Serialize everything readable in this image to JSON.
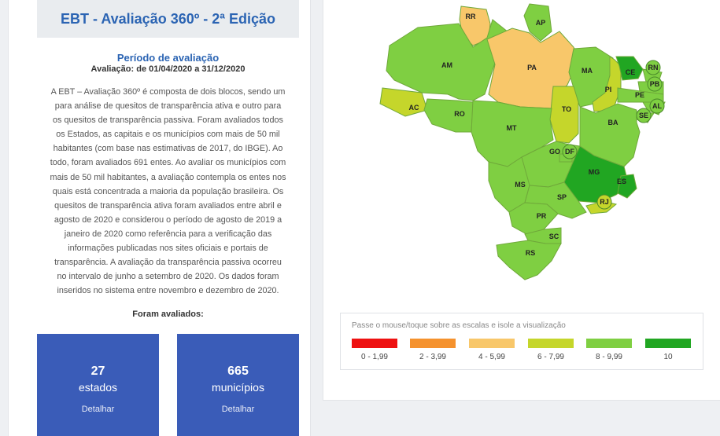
{
  "header": {
    "title": "EBT - Avaliação 360º - 2ª Edição"
  },
  "period": {
    "title": "Período de avaliação",
    "dates": "Avaliação: de 01/04/2020 a 31/12/2020"
  },
  "description": [
    "A EBT – Avaliação 360º é composta de dois blocos, sendo um",
    "para análise de quesitos de transparência ativa e outro para",
    "os quesitos de transparência passiva. Foram avaliados todos",
    "os Estados, as capitais e os municípios com mais de 50 mil",
    "habitantes (com base nas estimativas de 2017, do IBGE). Ao",
    "todo, foram avaliados 691 entes. Ao avaliar os municípios com",
    "mais de 50 mil habitantes, a avaliação contempla os entes nos",
    "quais está concentrada a maioria da população brasileira. Os",
    "quesitos de transparência ativa foram avaliados entre abril e",
    "agosto de 2020 e considerou o período de agosto de 2019 a",
    "janeiro de 2020 como referência para a verificação das",
    "informações publicadas nos sites oficiais e portais de",
    "transparência. A avaliação da transparência passiva ocorreu",
    "no intervalo de junho a setembro de 2020.  Os dados foram",
    "inseridos no sistema entre novembro e dezembro de 2020."
  ],
  "evaluated": {
    "title": "Foram avaliados:",
    "states": {
      "count": "27",
      "label": "estados",
      "link": "Detalhar"
    },
    "municipalities": {
      "count": "665",
      "label": "municípios",
      "link": "Detalhar"
    }
  },
  "map": {
    "states": [
      {
        "uf": "RR",
        "score_band": "4 - 5,99"
      },
      {
        "uf": "AP",
        "score_band": "8 - 9,99"
      },
      {
        "uf": "AM",
        "score_band": "8 - 9,99"
      },
      {
        "uf": "PA",
        "score_band": "4 - 5,99"
      },
      {
        "uf": "MA",
        "score_band": "8 - 9,99"
      },
      {
        "uf": "CE",
        "score_band": "10"
      },
      {
        "uf": "RN",
        "score_band": "8 - 9,99"
      },
      {
        "uf": "PB",
        "score_band": "8 - 9,99"
      },
      {
        "uf": "PI",
        "score_band": "6 - 7,99"
      },
      {
        "uf": "PE",
        "score_band": "8 - 9,99"
      },
      {
        "uf": "AL",
        "score_band": "8 - 9,99"
      },
      {
        "uf": "SE",
        "score_band": "8 - 9,99"
      },
      {
        "uf": "AC",
        "score_band": "6 - 7,99"
      },
      {
        "uf": "RO",
        "score_band": "8 - 9,99"
      },
      {
        "uf": "TO",
        "score_band": "6 - 7,99"
      },
      {
        "uf": "BA",
        "score_band": "8 - 9,99"
      },
      {
        "uf": "MT",
        "score_band": "8 - 9,99"
      },
      {
        "uf": "GO",
        "score_band": "8 - 9,99"
      },
      {
        "uf": "DF",
        "score_band": "8 - 9,99"
      },
      {
        "uf": "MG",
        "score_band": "10"
      },
      {
        "uf": "ES",
        "score_band": "10"
      },
      {
        "uf": "MS",
        "score_band": "8 - 9,99"
      },
      {
        "uf": "SP",
        "score_band": "8 - 9,99"
      },
      {
        "uf": "RJ",
        "score_band": "6 - 7,99"
      },
      {
        "uf": "PR",
        "score_band": "8 - 9,99"
      },
      {
        "uf": "SC",
        "score_band": "8 - 9,99"
      },
      {
        "uf": "RS",
        "score_band": "8 - 9,99"
      }
    ]
  },
  "legend": {
    "hint": "Passe o mouse/toque sobre as escalas e isole a visualização",
    "scales": [
      {
        "range": "0 - 1,99",
        "color": "#ee1111"
      },
      {
        "range": "2 - 3,99",
        "color": "#f5922e"
      },
      {
        "range": "4 - 5,99",
        "color": "#f8c76a"
      },
      {
        "range": "6 - 7,99",
        "color": "#c5d62b"
      },
      {
        "range": "8 - 9,99",
        "color": "#7fcf42"
      },
      {
        "range": "10",
        "color": "#21a622"
      }
    ]
  },
  "colors": {
    "accent": "#2b64b3",
    "card": "#3a5cb8",
    "stroke": "#6fa83a"
  }
}
